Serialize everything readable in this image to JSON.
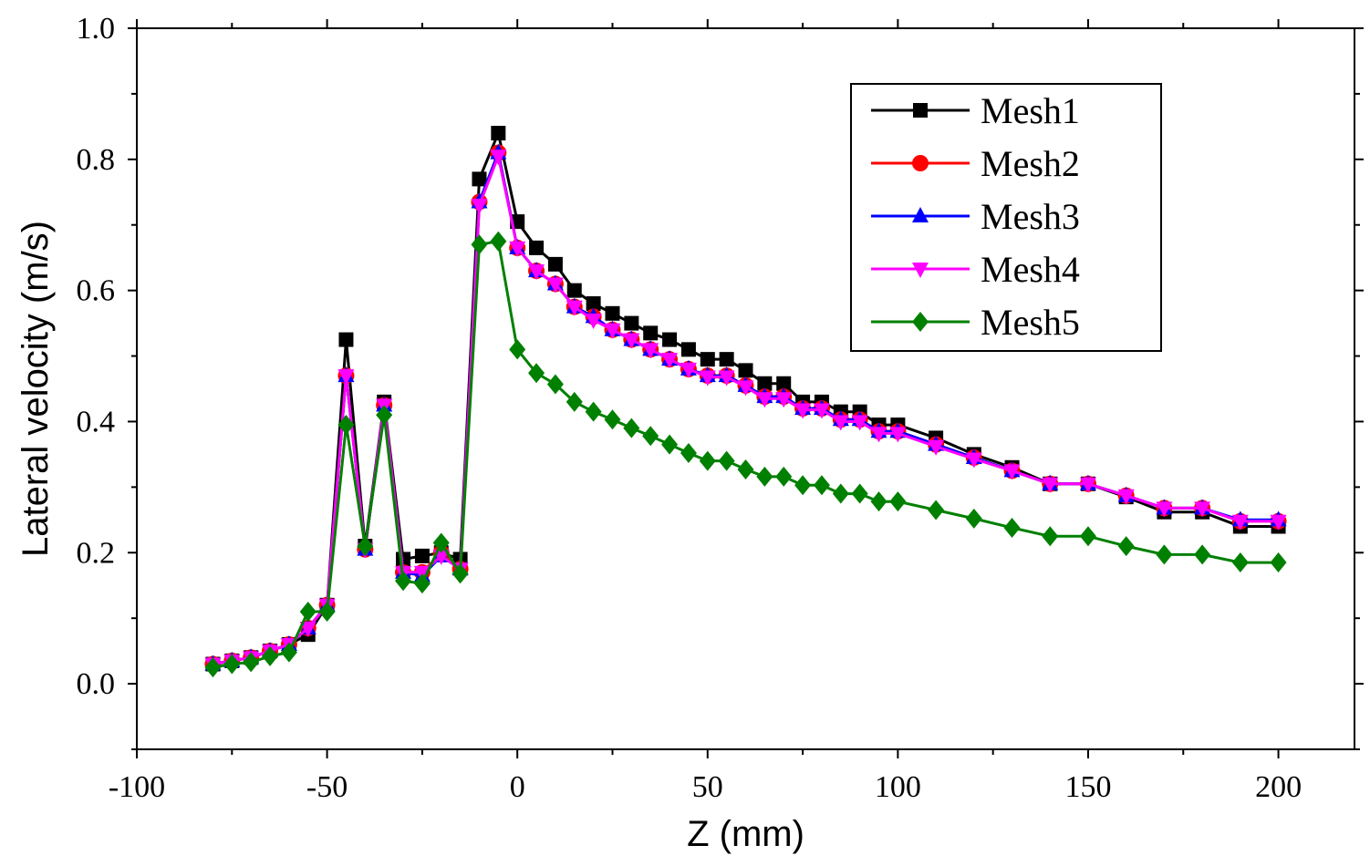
{
  "chart_data": {
    "type": "line",
    "title": "",
    "xlabel": "Z (mm)",
    "ylabel": "Lateral velocity (m/s)",
    "xlim": [
      -100,
      220
    ],
    "ylim": [
      -0.1,
      1.0
    ],
    "xticks": [
      -100,
      -50,
      0,
      50,
      100,
      150,
      200
    ],
    "xtick_labels": [
      "-100",
      "-50",
      "0",
      "50",
      "100",
      "150",
      "200"
    ],
    "yticks": [
      0.0,
      0.2,
      0.4,
      0.6,
      0.8,
      1.0
    ],
    "ytick_labels": [
      "0.0",
      "0.2",
      "0.4",
      "0.6",
      "0.8",
      "1.0"
    ],
    "grid": false,
    "legend_position": "top-right",
    "x": [
      -80,
      -75,
      -70,
      -65,
      -60,
      -55,
      -50,
      -45,
      -40,
      -35,
      -30,
      -25,
      -20,
      -15,
      -10,
      -5,
      0,
      5,
      10,
      15,
      20,
      25,
      30,
      35,
      40,
      45,
      50,
      55,
      60,
      65,
      70,
      75,
      80,
      85,
      90,
      95,
      100,
      110,
      120,
      130,
      140,
      150,
      160,
      170,
      180,
      190,
      200
    ],
    "series": [
      {
        "name": "Mesh1",
        "color": "#000000",
        "marker": "square",
        "values": [
          0.03,
          0.035,
          0.04,
          0.05,
          0.06,
          0.075,
          0.12,
          0.525,
          0.21,
          0.43,
          0.19,
          0.195,
          0.2,
          0.19,
          0.77,
          0.84,
          0.705,
          0.665,
          0.64,
          0.6,
          0.58,
          0.565,
          0.55,
          0.535,
          0.525,
          0.51,
          0.495,
          0.495,
          0.478,
          0.458,
          0.458,
          0.43,
          0.43,
          0.415,
          0.415,
          0.395,
          0.395,
          0.375,
          0.35,
          0.33,
          0.305,
          0.305,
          0.285,
          0.262,
          0.262,
          0.24,
          0.24
        ]
      },
      {
        "name": "Mesh2",
        "color": "#ff0000",
        "marker": "circle",
        "values": [
          0.03,
          0.035,
          0.04,
          0.05,
          0.06,
          0.085,
          0.12,
          0.47,
          0.205,
          0.425,
          0.17,
          0.17,
          0.2,
          0.175,
          0.735,
          0.81,
          0.665,
          0.63,
          0.61,
          0.575,
          0.56,
          0.54,
          0.525,
          0.51,
          0.495,
          0.48,
          0.47,
          0.47,
          0.455,
          0.438,
          0.438,
          0.42,
          0.42,
          0.403,
          0.403,
          0.385,
          0.385,
          0.365,
          0.345,
          0.325,
          0.305,
          0.305,
          0.287,
          0.268,
          0.268,
          0.248,
          0.248
        ]
      },
      {
        "name": "Mesh3",
        "color": "#0000ff",
        "marker": "triangle-up",
        "values": [
          0.03,
          0.035,
          0.04,
          0.05,
          0.06,
          0.085,
          0.12,
          0.47,
          0.205,
          0.425,
          0.17,
          0.165,
          0.195,
          0.175,
          0.735,
          0.81,
          0.665,
          0.63,
          0.61,
          0.575,
          0.56,
          0.54,
          0.525,
          0.51,
          0.495,
          0.48,
          0.47,
          0.47,
          0.455,
          0.438,
          0.438,
          0.42,
          0.42,
          0.403,
          0.403,
          0.385,
          0.385,
          0.365,
          0.345,
          0.325,
          0.305,
          0.305,
          0.287,
          0.268,
          0.268,
          0.25,
          0.25
        ]
      },
      {
        "name": "Mesh4",
        "color": "#ff00ff",
        "marker": "triangle-down",
        "values": [
          0.03,
          0.035,
          0.04,
          0.05,
          0.06,
          0.085,
          0.12,
          0.47,
          0.205,
          0.425,
          0.17,
          0.17,
          0.195,
          0.175,
          0.73,
          0.805,
          0.665,
          0.63,
          0.61,
          0.575,
          0.555,
          0.54,
          0.525,
          0.51,
          0.495,
          0.48,
          0.468,
          0.468,
          0.453,
          0.435,
          0.435,
          0.418,
          0.418,
          0.4,
          0.4,
          0.382,
          0.382,
          0.362,
          0.343,
          0.325,
          0.305,
          0.305,
          0.287,
          0.268,
          0.268,
          0.248,
          0.248
        ]
      },
      {
        "name": "Mesh5",
        "color": "#008000",
        "marker": "diamond",
        "values": [
          0.025,
          0.03,
          0.033,
          0.042,
          0.048,
          0.11,
          0.11,
          0.395,
          0.21,
          0.41,
          0.157,
          0.153,
          0.215,
          0.168,
          0.67,
          0.675,
          0.51,
          0.474,
          0.457,
          0.43,
          0.415,
          0.403,
          0.39,
          0.378,
          0.365,
          0.352,
          0.34,
          0.34,
          0.327,
          0.316,
          0.316,
          0.303,
          0.303,
          0.29,
          0.29,
          0.278,
          0.278,
          0.265,
          0.252,
          0.238,
          0.225,
          0.225,
          0.21,
          0.197,
          0.197,
          0.185,
          0.185
        ]
      }
    ]
  }
}
